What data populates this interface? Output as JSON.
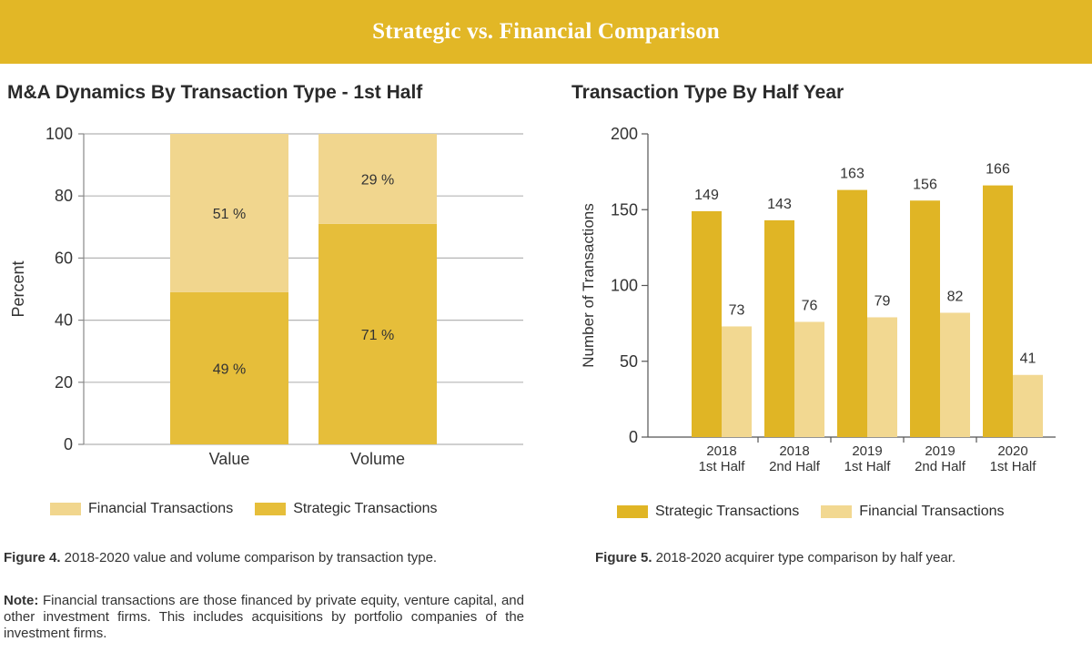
{
  "banner": {
    "title": "Strategic vs. Financial Comparison"
  },
  "colors": {
    "strategic": "#e6be3a",
    "financial": "#f1d68e",
    "strategic2": "#e0b525",
    "financial2": "#f2d891",
    "grid": "#b5b5b5",
    "banner": "#e2b726"
  },
  "chart_data": [
    {
      "type": "bar",
      "stacked": true,
      "title": "M&A Dynamics By Transaction Type - 1st Half",
      "categories": [
        "Value",
        "Volume"
      ],
      "series": [
        {
          "name": "Strategic Transactions",
          "values": [
            49,
            71
          ],
          "labels": [
            "49 %",
            "71 %"
          ]
        },
        {
          "name": "Financial Transactions",
          "values": [
            51,
            29
          ],
          "labels": [
            "51 %",
            "29 %"
          ]
        }
      ],
      "xlabel": "",
      "ylabel": "Percent",
      "ylim": [
        0,
        100
      ],
      "yticks": [
        0,
        20,
        40,
        60,
        80,
        100
      ],
      "legend": [
        "Financial Transactions",
        "Strategic Transactions"
      ],
      "grid": true
    },
    {
      "type": "bar",
      "stacked": false,
      "title": "Transaction Type By Half Year",
      "categories": [
        {
          "year": "2018",
          "half": "1st Half"
        },
        {
          "year": "2018",
          "half": "2nd Half"
        },
        {
          "year": "2019",
          "half": "1st Half"
        },
        {
          "year": "2019",
          "half": "2nd Half"
        },
        {
          "year": "2020",
          "half": "1st Half"
        }
      ],
      "series": [
        {
          "name": "Strategic Transactions",
          "values": [
            149,
            143,
            163,
            156,
            166
          ]
        },
        {
          "name": "Financial Transactions",
          "values": [
            73,
            76,
            79,
            82,
            41
          ]
        }
      ],
      "xlabel": "",
      "ylabel": "Number of Transactions",
      "ylim": [
        0,
        200
      ],
      "yticks": [
        0,
        50,
        100,
        150,
        200
      ],
      "legend": [
        "Strategic Transactions",
        "Financial Transactions"
      ],
      "grid": false
    }
  ],
  "captions": {
    "fig4_label": "Figure 4.",
    "fig4_text": " 2018-2020 value and volume comparison by transaction type.",
    "fig5_label": "Figure 5.",
    "fig5_text": " 2018-2020 acquirer type comparison by half year.",
    "note_label": "Note:",
    "note_text": " Financial transactions are those financed by private equity, venture capital, and other investment firms. This includes acquisitions by portfolio companies of the investment firms."
  }
}
